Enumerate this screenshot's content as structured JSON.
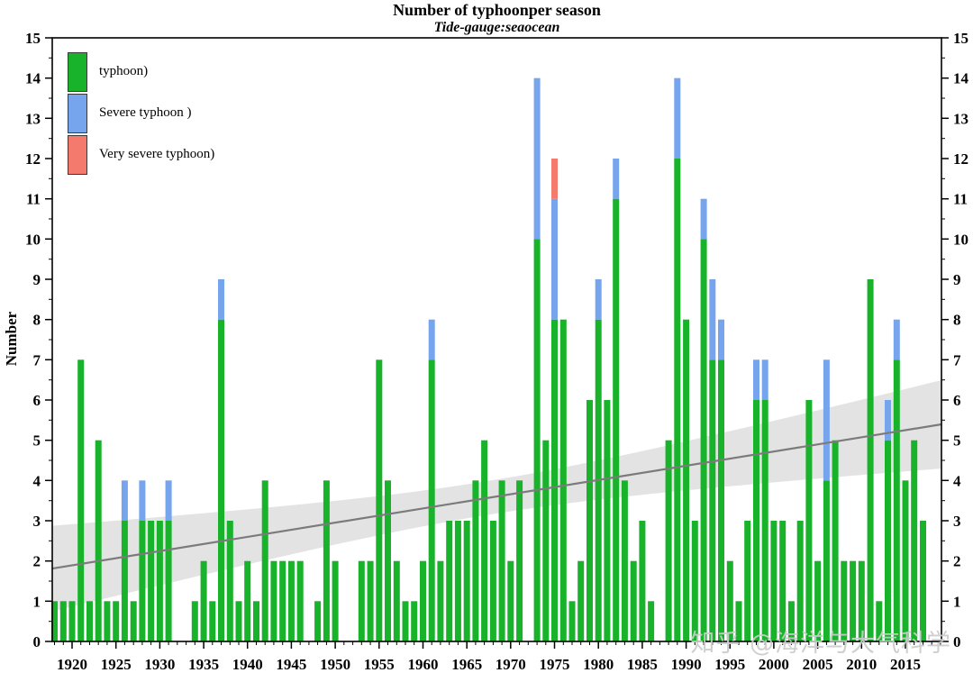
{
  "watermark": "知乎 @海洋与大气科学",
  "chart_data": {
    "type": "bar",
    "stacked": true,
    "title": "Number of typhoonper season",
    "subtitle": "Tide-gauge:seaocean",
    "ylabel": "Number",
    "ylim": [
      0,
      15
    ],
    "grid": false,
    "legend_position": "top-left",
    "x_tick_labels": [
      1920,
      1925,
      1930,
      1935,
      1940,
      1945,
      1950,
      1955,
      1960,
      1965,
      1970,
      1975,
      1980,
      1985,
      1990,
      1995,
      2000,
      2005,
      2010,
      2015
    ],
    "y_tick_labels": [
      0,
      1,
      2,
      3,
      4,
      5,
      6,
      7,
      8,
      9,
      10,
      11,
      12,
      13,
      14,
      15
    ],
    "years": [
      1918,
      1919,
      1920,
      1921,
      1922,
      1923,
      1924,
      1925,
      1926,
      1927,
      1928,
      1929,
      1930,
      1931,
      1932,
      1933,
      1934,
      1935,
      1936,
      1937,
      1938,
      1939,
      1940,
      1941,
      1942,
      1943,
      1944,
      1945,
      1946,
      1947,
      1948,
      1949,
      1950,
      1951,
      1952,
      1953,
      1954,
      1955,
      1956,
      1957,
      1958,
      1959,
      1960,
      1961,
      1962,
      1963,
      1964,
      1965,
      1966,
      1967,
      1968,
      1969,
      1970,
      1971,
      1972,
      1973,
      1974,
      1975,
      1976,
      1977,
      1978,
      1979,
      1980,
      1981,
      1982,
      1983,
      1984,
      1985,
      1986,
      1987,
      1988,
      1989,
      1990,
      1991,
      1992,
      1993,
      1994,
      1995,
      1996,
      1997,
      1998,
      1999,
      2000,
      2001,
      2002,
      2003,
      2004,
      2005,
      2006,
      2007,
      2008,
      2009,
      2010,
      2011,
      2012,
      2013,
      2014,
      2015,
      2016,
      2017
    ],
    "series": [
      {
        "name": "typhoon)",
        "color": "#18b32b",
        "values": [
          1,
          1,
          1,
          7,
          1,
          5,
          1,
          1,
          3,
          1,
          3,
          3,
          3,
          3,
          0,
          0,
          1,
          2,
          1,
          8,
          3,
          1,
          2,
          1,
          4,
          2,
          2,
          2,
          2,
          0,
          1,
          4,
          2,
          0,
          0,
          2,
          2,
          7,
          4,
          2,
          1,
          1,
          2,
          7,
          2,
          3,
          3,
          3,
          4,
          5,
          3,
          4,
          2,
          4,
          0,
          10,
          5,
          8,
          8,
          1,
          2,
          6,
          8,
          6,
          11,
          4,
          2,
          3,
          1,
          0,
          5,
          12,
          8,
          3,
          10,
          7,
          7,
          2,
          1,
          3,
          6,
          6,
          3,
          3,
          1,
          3,
          6,
          2,
          4,
          5,
          2,
          2,
          2,
          9,
          1,
          5,
          7,
          4,
          5,
          3
        ]
      },
      {
        "name": "Severe typhoon )",
        "color": "#76a5ee",
        "values": [
          0,
          0,
          0,
          0,
          0,
          0,
          0,
          0,
          1,
          0,
          1,
          0,
          0,
          1,
          0,
          0,
          0,
          0,
          0,
          1,
          0,
          0,
          0,
          0,
          0,
          0,
          0,
          0,
          0,
          0,
          0,
          0,
          0,
          0,
          0,
          0,
          0,
          0,
          0,
          0,
          0,
          0,
          0,
          1,
          0,
          0,
          0,
          0,
          0,
          0,
          0,
          0,
          0,
          0,
          0,
          4,
          0,
          3,
          0,
          0,
          0,
          0,
          1,
          0,
          1,
          0,
          0,
          0,
          0,
          0,
          0,
          2,
          0,
          0,
          1,
          2,
          1,
          0,
          0,
          0,
          1,
          1,
          0,
          0,
          0,
          0,
          0,
          0,
          3,
          0,
          0,
          0,
          0,
          0,
          0,
          1,
          1,
          0,
          0,
          0
        ]
      },
      {
        "name": "Very severe typhoon)",
        "color": "#f57a6e",
        "values": [
          0,
          0,
          0,
          0,
          0,
          0,
          0,
          0,
          0,
          0,
          0,
          0,
          0,
          0,
          0,
          0,
          0,
          0,
          0,
          0,
          0,
          0,
          0,
          0,
          0,
          0,
          0,
          0,
          0,
          0,
          0,
          0,
          0,
          0,
          0,
          0,
          0,
          0,
          0,
          0,
          0,
          0,
          0,
          0,
          0,
          0,
          0,
          0,
          0,
          0,
          0,
          0,
          0,
          0,
          0,
          0,
          0,
          1,
          0,
          0,
          0,
          0,
          0,
          0,
          0,
          0,
          0,
          0,
          0,
          0,
          0,
          0,
          0,
          0,
          0,
          0,
          0,
          0,
          0,
          0,
          0,
          0,
          0,
          0,
          0,
          0,
          0,
          0,
          0,
          0,
          0,
          0,
          0,
          0,
          0,
          0,
          0,
          0,
          0,
          0
        ]
      }
    ],
    "trend": {
      "x0": 1918,
      "y0": 1.82,
      "x1": 2017,
      "y1": 5.32,
      "color": "#7b7b7b",
      "band_color": "#e3e3e3",
      "band_halfwidth_mid": 0.42,
      "band_halfwidth_end": 1.06
    }
  }
}
